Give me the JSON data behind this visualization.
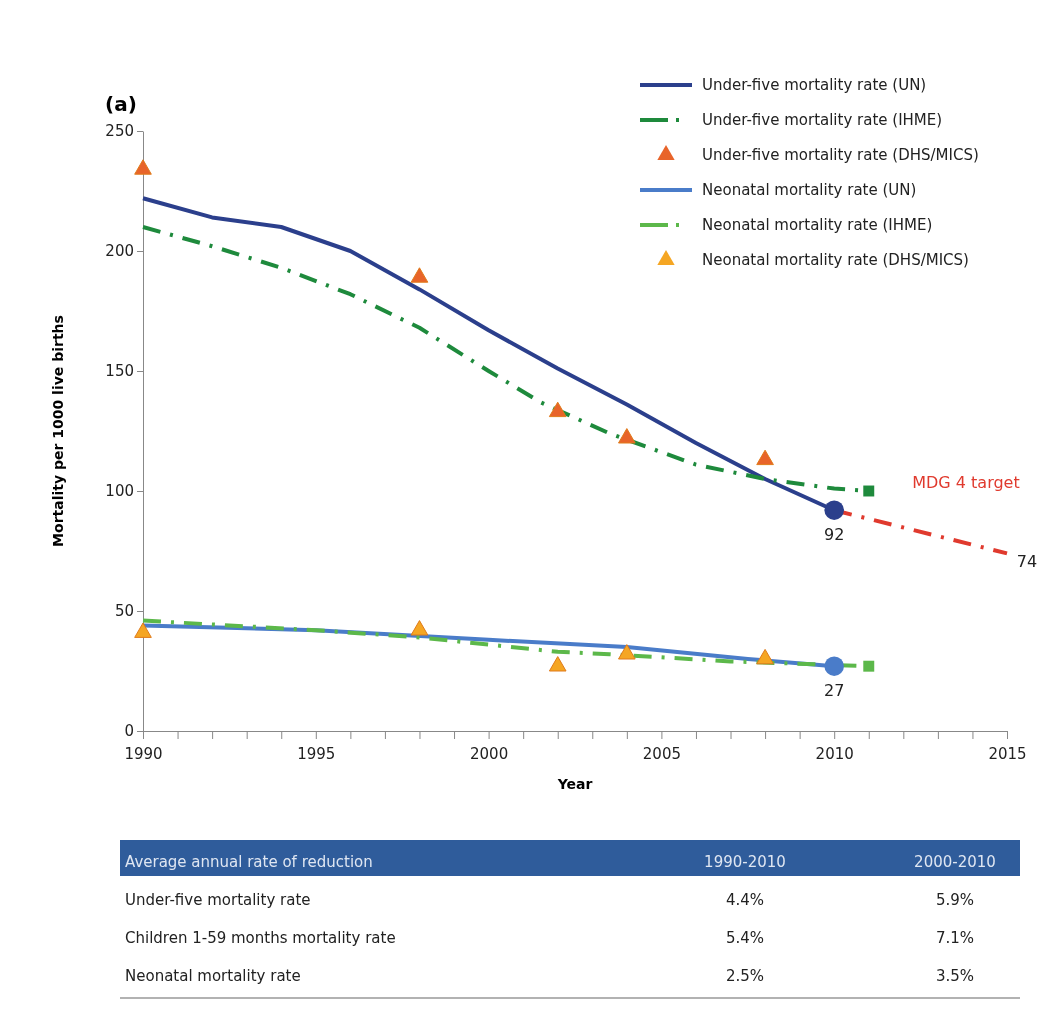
{
  "chart_data": {
    "type": "line",
    "xlabel": "Year",
    "ylabel": "Mortality per 1000 live births",
    "xlim": [
      1990,
      2015
    ],
    "ylim": [
      0,
      250
    ],
    "xticks": [
      1990,
      {
        "value": 1991,
        "label": null
      },
      {
        "value": 1992,
        "label": null
      },
      {
        "value": 1993,
        "label": null
      },
      {
        "value": 1994,
        "label": null
      },
      1995,
      {
        "value": 1996,
        "label": null
      },
      {
        "value": 1997,
        "label": null
      },
      {
        "value": 1998,
        "label": null
      },
      {
        "value": 1999,
        "label": null
      },
      2000,
      {
        "value": 2001,
        "label": null
      },
      {
        "value": 2002,
        "label": null
      },
      {
        "value": 2003,
        "label": null
      },
      {
        "value": 2004,
        "label": null
      },
      2005,
      {
        "value": 2006,
        "label": null
      },
      {
        "value": 2007,
        "label": null
      },
      {
        "value": 2008,
        "label": null
      },
      {
        "value": 2009,
        "label": null
      },
      2010,
      {
        "value": 2011,
        "label": null
      },
      {
        "value": 2012,
        "label": null
      },
      {
        "value": 2013,
        "label": null
      },
      {
        "value": 2014,
        "label": null
      },
      2015
    ],
    "yticks": [
      0,
      50,
      100,
      150,
      200,
      250
    ],
    "grid": false,
    "legend": "top right",
    "marker": "none",
    "series": [
      {
        "name": "Under-five mortality rate (UN)",
        "color": "#2b3f8c",
        "line_style": "solid",
        "x": [
          1990,
          1992,
          1994,
          1996,
          1998,
          2000,
          2002,
          2004,
          2006,
          2008,
          2010
        ],
        "values": [
          222,
          214,
          210,
          200,
          184,
          167,
          151,
          136,
          120,
          105,
          92
        ],
        "value_labels": [
          null,
          null,
          null,
          null,
          null,
          null,
          null,
          null,
          null,
          null,
          "92"
        ]
      },
      {
        "name": "Under-five mortality rate (IHME)",
        "color": "#1e8a3c",
        "line_style": "dashed",
        "x": [
          1990,
          1992,
          1994,
          1996,
          1998,
          2000,
          2001.5,
          2003.5,
          2006,
          2008,
          2010,
          2011
        ],
        "values": [
          210,
          202,
          193,
          182,
          168,
          150,
          137,
          124,
          111,
          105,
          101,
          100
        ]
      },
      {
        "name": "Under-five mortality rate (DHS/MICS)",
        "type": "scatter",
        "marker": "triangle",
        "color": "#e8642a",
        "x": [
          1990,
          1998,
          2002,
          2004,
          2008
        ],
        "values": [
          234,
          189,
          133,
          122,
          113
        ]
      },
      {
        "name": "Neonatal mortality rate (UN)",
        "color": "#4a7cc9",
        "line_style": "solid",
        "x": [
          1990,
          1995,
          2000,
          2004,
          2007.5,
          2010
        ],
        "values": [
          44,
          42,
          38,
          35,
          30,
          27
        ],
        "value_labels": [
          null,
          null,
          null,
          null,
          null,
          "27"
        ]
      },
      {
        "name": "Neonatal mortality rate (IHME)",
        "color": "#5cb84a",
        "line_style": "dashed",
        "x": [
          1990,
          1995,
          1998,
          2000,
          2002,
          2003.5,
          2007,
          2011
        ],
        "values": [
          46,
          42,
          39,
          36,
          33,
          32,
          29,
          27
        ]
      },
      {
        "name": "Neonatal mortality rate (DHS/MICS)",
        "type": "scatter",
        "marker": "triangle",
        "color": "#f5a623",
        "x": [
          1990,
          1998,
          2002,
          2004,
          2008
        ],
        "values": [
          41,
          42,
          27,
          32,
          30
        ]
      },
      {
        "name": "MDG 4 target",
        "color": "#e03a2e",
        "line_style": "dashed",
        "x": [
          2010,
          2015
        ],
        "values": [
          92,
          74
        ],
        "value_labels": [
          null,
          "74"
        ]
      },
      {
        "type": "scatter",
        "marker": "circle",
        "color": "#2b3f8c",
        "x": [
          2010
        ],
        "values": [
          92
        ]
      },
      {
        "type": "scatter",
        "marker": "square",
        "color": "#1e8a3c",
        "x": [
          2011
        ],
        "values": [
          100
        ]
      },
      {
        "type": "scatter",
        "marker": "circle",
        "color": "#4a7cc9",
        "x": [
          2010
        ],
        "values": [
          27
        ]
      },
      {
        "type": "scatter",
        "marker": "square",
        "color": "#5cb84a",
        "x": [
          2011
        ],
        "values": [
          27
        ]
      }
    ],
    "annotations": [
      "(a)",
      "Average annual rate of reduction",
      "1990-2010",
      "2000-2010",
      "Under-five mortality rate",
      "4.4%",
      "5.9%",
      "Children 1-59 months mortality rate",
      "5.4%",
      "7.1%",
      "Neonatal mortality rate",
      "2.5%",
      "3.5%"
    ]
  }
}
